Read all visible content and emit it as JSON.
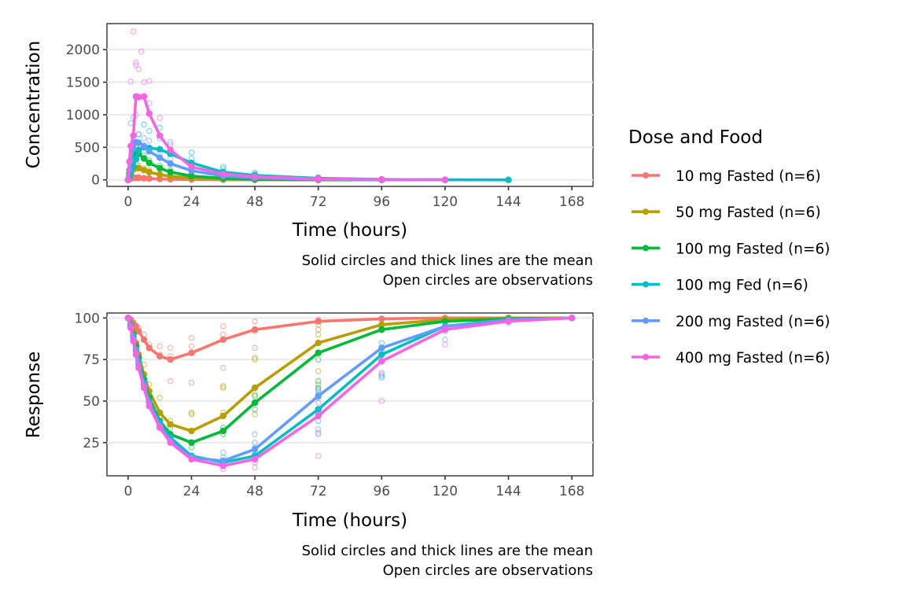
{
  "legend": {
    "title": "Dose and Food",
    "placement": "right",
    "entries": [
      {
        "label": "10 mg Fasted (n=6)",
        "color": "#F8766D"
      },
      {
        "label": "50 mg Fasted (n=6)",
        "color": "#B79F00"
      },
      {
        "label": "100 mg Fasted (n=6)",
        "color": "#00BA38"
      },
      {
        "label": "100 mg Fed (n=6)",
        "color": "#00BFC4"
      },
      {
        "label": "200 mg Fasted (n=6)",
        "color": "#619CFF"
      },
      {
        "label": "400 mg Fasted (n=6)",
        "color": "#F564E3"
      }
    ]
  },
  "chart_data": [
    {
      "type": "line",
      "panel": "top",
      "title": "",
      "xlabel": "Time (hours)",
      "ylabel": "Concentration",
      "caption": [
        "Solid circles and thick lines are the mean",
        "Open circles are observations"
      ],
      "xlim": [
        -8,
        176
      ],
      "ylim": [
        -100,
        2400
      ],
      "xticks": [
        0,
        24,
        48,
        72,
        96,
        120,
        144,
        168
      ],
      "yticks": [
        0,
        500,
        1000,
        1500,
        2000
      ],
      "grid": "horizontal",
      "series": [
        {
          "name": "10 mg Fasted (n=6)",
          "x": [
            0,
            0.5,
            1,
            2,
            3,
            4,
            6,
            8,
            12,
            16,
            24,
            36,
            48,
            72,
            96,
            120
          ],
          "y": [
            0,
            10,
            20,
            30,
            32,
            30,
            25,
            20,
            15,
            10,
            5,
            2,
            1,
            0,
            0,
            0
          ],
          "obs": [
            [
              2,
              40
            ],
            [
              4,
              45
            ],
            [
              8,
              30
            ],
            [
              12,
              20
            ],
            [
              16,
              12
            ],
            [
              24,
              6
            ]
          ]
        },
        {
          "name": "50 mg Fasted (n=6)",
          "x": [
            0,
            0.5,
            1,
            2,
            3,
            4,
            6,
            8,
            12,
            16,
            24,
            36,
            48,
            72,
            96,
            120
          ],
          "y": [
            0,
            60,
            120,
            160,
            180,
            180,
            150,
            120,
            80,
            55,
            30,
            12,
            5,
            1,
            0,
            0
          ],
          "obs": [
            [
              2,
              200
            ],
            [
              3,
              240
            ],
            [
              4,
              220
            ],
            [
              6,
              180
            ],
            [
              8,
              150
            ],
            [
              12,
              100
            ],
            [
              16,
              70
            ],
            [
              24,
              40
            ]
          ]
        },
        {
          "name": "100 mg Fasted (n=6)",
          "x": [
            0,
            0.5,
            1,
            2,
            3,
            4,
            6,
            8,
            12,
            16,
            24,
            36,
            48,
            72,
            96,
            120
          ],
          "y": [
            0,
            100,
            220,
            340,
            420,
            400,
            330,
            260,
            180,
            120,
            60,
            25,
            10,
            2,
            0,
            0
          ],
          "obs": [
            [
              2,
              450
            ],
            [
              3,
              500
            ],
            [
              4,
              470
            ],
            [
              6,
              380
            ],
            [
              8,
              300
            ],
            [
              12,
              220
            ],
            [
              16,
              150
            ],
            [
              24,
              80
            ]
          ]
        },
        {
          "name": "100 mg Fed (n=6)",
          "x": [
            0,
            0.5,
            1,
            2,
            3,
            4,
            6,
            8,
            12,
            16,
            24,
            36,
            48,
            72,
            96,
            120,
            144
          ],
          "y": [
            0,
            40,
            90,
            200,
            320,
            450,
            500,
            490,
            470,
            400,
            260,
            120,
            70,
            25,
            8,
            2,
            0
          ],
          "obs": [
            [
              4,
              700
            ],
            [
              6,
              850
            ],
            [
              8,
              750
            ],
            [
              12,
              640
            ],
            [
              12,
              800
            ],
            [
              16,
              540
            ],
            [
              24,
              420
            ],
            [
              24,
              330
            ],
            [
              36,
              200
            ],
            [
              36,
              170
            ],
            [
              48,
              110
            ],
            [
              48,
              90
            ],
            [
              72,
              40
            ],
            [
              72,
              30
            ]
          ]
        },
        {
          "name": "200 mg Fasted (n=6)",
          "x": [
            0,
            0.5,
            1,
            2,
            3,
            4,
            6,
            8,
            12,
            16,
            24,
            36,
            48,
            72,
            96,
            120
          ],
          "y": [
            0,
            150,
            300,
            480,
            580,
            570,
            520,
            440,
            340,
            250,
            140,
            60,
            30,
            8,
            2,
            0
          ],
          "obs": [
            [
              1,
              870
            ],
            [
              2,
              960
            ],
            [
              3,
              1000
            ],
            [
              4,
              700
            ],
            [
              6,
              640
            ],
            [
              8,
              600
            ],
            [
              12,
              420
            ],
            [
              16,
              330
            ],
            [
              24,
              200
            ]
          ]
        },
        {
          "name": "400 mg Fasted (n=6)",
          "x": [
            0,
            0.5,
            1,
            2,
            3,
            4,
            6,
            8,
            12,
            16,
            24,
            36,
            48,
            72,
            96,
            120
          ],
          "y": [
            0,
            280,
            520,
            680,
            1280,
            1270,
            1280,
            1020,
            680,
            460,
            200,
            90,
            50,
            15,
            5,
            1
          ],
          "obs": [
            [
              1,
              1510
            ],
            [
              2,
              2280
            ],
            [
              3,
              1800
            ],
            [
              3,
              1760
            ],
            [
              4,
              1700
            ],
            [
              5,
              1970
            ],
            [
              6,
              1500
            ],
            [
              8,
              1520
            ],
            [
              8,
              1180
            ],
            [
              12,
              950
            ],
            [
              16,
              580
            ],
            [
              24,
              250
            ]
          ]
        }
      ]
    },
    {
      "type": "line",
      "panel": "bottom",
      "title": "",
      "xlabel": "Time (hours)",
      "ylabel": "Response",
      "caption": [
        "Solid circles and thick lines are the mean",
        "Open circles are observations"
      ],
      "xlim": [
        -8,
        176
      ],
      "ylim": [
        5,
        103
      ],
      "xticks": [
        0,
        24,
        48,
        72,
        96,
        120,
        144,
        168
      ],
      "yticks": [
        25,
        50,
        75,
        100
      ],
      "grid": "horizontal",
      "series": [
        {
          "name": "10 mg Fasted (n=6)",
          "x": [
            0,
            1,
            2,
            3,
            4,
            6,
            8,
            12,
            16,
            24,
            36,
            48,
            72,
            96,
            120,
            144,
            168
          ],
          "y": [
            100,
            99,
            97,
            95,
            92,
            87,
            82,
            77,
            75,
            79,
            87,
            93,
            98,
            99.5,
            100,
            100,
            100
          ],
          "obs": [
            [
              4,
              94
            ],
            [
              6,
              90
            ],
            [
              8,
              84
            ],
            [
              12,
              83
            ],
            [
              12,
              78
            ],
            [
              16,
              82
            ],
            [
              16,
              77
            ],
            [
              16,
              62
            ],
            [
              24,
              88
            ],
            [
              24,
              83
            ],
            [
              24,
              61
            ],
            [
              36,
              95
            ],
            [
              36,
              90
            ],
            [
              36,
              70
            ],
            [
              48,
              98
            ],
            [
              48,
              92
            ],
            [
              48,
              82
            ],
            [
              72,
              99
            ],
            [
              72,
              96
            ]
          ]
        },
        {
          "name": "50 mg Fasted (n=6)",
          "x": [
            0,
            1,
            2,
            3,
            4,
            6,
            8,
            12,
            16,
            24,
            36,
            48,
            72,
            96,
            120,
            144,
            168
          ],
          "y": [
            100,
            97,
            92,
            85,
            78,
            66,
            56,
            43,
            36,
            32,
            41,
            58,
            85,
            96,
            99,
            100,
            100
          ],
          "obs": [
            [
              6,
              72
            ],
            [
              8,
              60
            ],
            [
              12,
              52
            ],
            [
              16,
              38
            ],
            [
              24,
              43
            ],
            [
              24,
              42
            ],
            [
              36,
              59
            ],
            [
              36,
              58
            ],
            [
              36,
              43
            ],
            [
              48,
              76
            ],
            [
              48,
              75
            ],
            [
              48,
              54
            ],
            [
              48,
              42
            ],
            [
              72,
              93
            ],
            [
              72,
              90
            ],
            [
              72,
              68
            ],
            [
              72,
              60
            ]
          ]
        },
        {
          "name": "100 mg Fasted (n=6)",
          "x": [
            0,
            1,
            2,
            3,
            4,
            6,
            8,
            12,
            16,
            24,
            36,
            48,
            72,
            96,
            120,
            144,
            168
          ],
          "y": [
            100,
            96,
            90,
            83,
            76,
            63,
            52,
            38,
            30,
            25,
            32,
            49,
            79,
            93,
            98,
            99.5,
            100
          ],
          "obs": [
            [
              12,
              40
            ],
            [
              16,
              34
            ],
            [
              24,
              22
            ],
            [
              36,
              34
            ],
            [
              36,
              30
            ],
            [
              48,
              58
            ],
            [
              48,
              53
            ],
            [
              48,
              45
            ],
            [
              72,
              98
            ],
            [
              72,
              75
            ],
            [
              72,
              62
            ],
            [
              72,
              58
            ]
          ]
        },
        {
          "name": "100 mg Fed (n=6)",
          "x": [
            0,
            1,
            2,
            3,
            4,
            6,
            8,
            12,
            16,
            24,
            36,
            48,
            72,
            96,
            120,
            144,
            168
          ],
          "y": [
            100,
            96,
            89,
            81,
            74,
            61,
            50,
            37,
            28,
            17,
            13,
            17,
            45,
            78,
            95,
            99,
            100
          ],
          "obs": [
            [
              36,
              16
            ],
            [
              48,
              22
            ],
            [
              48,
              18
            ],
            [
              72,
              57
            ],
            [
              72,
              52
            ],
            [
              72,
              45
            ],
            [
              72,
              38
            ],
            [
              96,
              85
            ],
            [
              96,
              74
            ],
            [
              96,
              65
            ]
          ]
        },
        {
          "name": "200 mg Fasted (n=6)",
          "x": [
            0,
            1,
            2,
            3,
            4,
            6,
            8,
            12,
            16,
            24,
            36,
            48,
            72,
            96,
            120,
            144,
            168
          ],
          "y": [
            100,
            95,
            88,
            80,
            72,
            60,
            49,
            35,
            26,
            16,
            14,
            21,
            53,
            82,
            95,
            99,
            100
          ],
          "obs": [
            [
              36,
              19
            ],
            [
              48,
              30
            ],
            [
              48,
              25
            ],
            [
              72,
              56
            ],
            [
              72,
              54
            ],
            [
              72,
              44
            ],
            [
              72,
              33
            ],
            [
              72,
              30
            ],
            [
              96,
              80
            ],
            [
              96,
              66
            ],
            [
              96,
              64
            ],
            [
              120,
              92
            ],
            [
              120,
              87
            ]
          ]
        },
        {
          "name": "400 mg Fasted (n=6)",
          "x": [
            0,
            1,
            2,
            3,
            4,
            6,
            8,
            12,
            16,
            24,
            36,
            48,
            72,
            96,
            120,
            144,
            168
          ],
          "y": [
            100,
            94,
            86,
            78,
            70,
            58,
            47,
            34,
            25,
            15,
            11,
            15,
            41,
            74,
            93,
            98,
            100
          ],
          "obs": [
            [
              36,
              9
            ],
            [
              48,
              10
            ],
            [
              48,
              13
            ],
            [
              72,
              49
            ],
            [
              72,
              42
            ],
            [
              72,
              31
            ],
            [
              72,
              17
            ],
            [
              96,
              67
            ],
            [
              96,
              50
            ],
            [
              120,
              84
            ],
            [
              144,
              97
            ]
          ]
        }
      ]
    }
  ]
}
